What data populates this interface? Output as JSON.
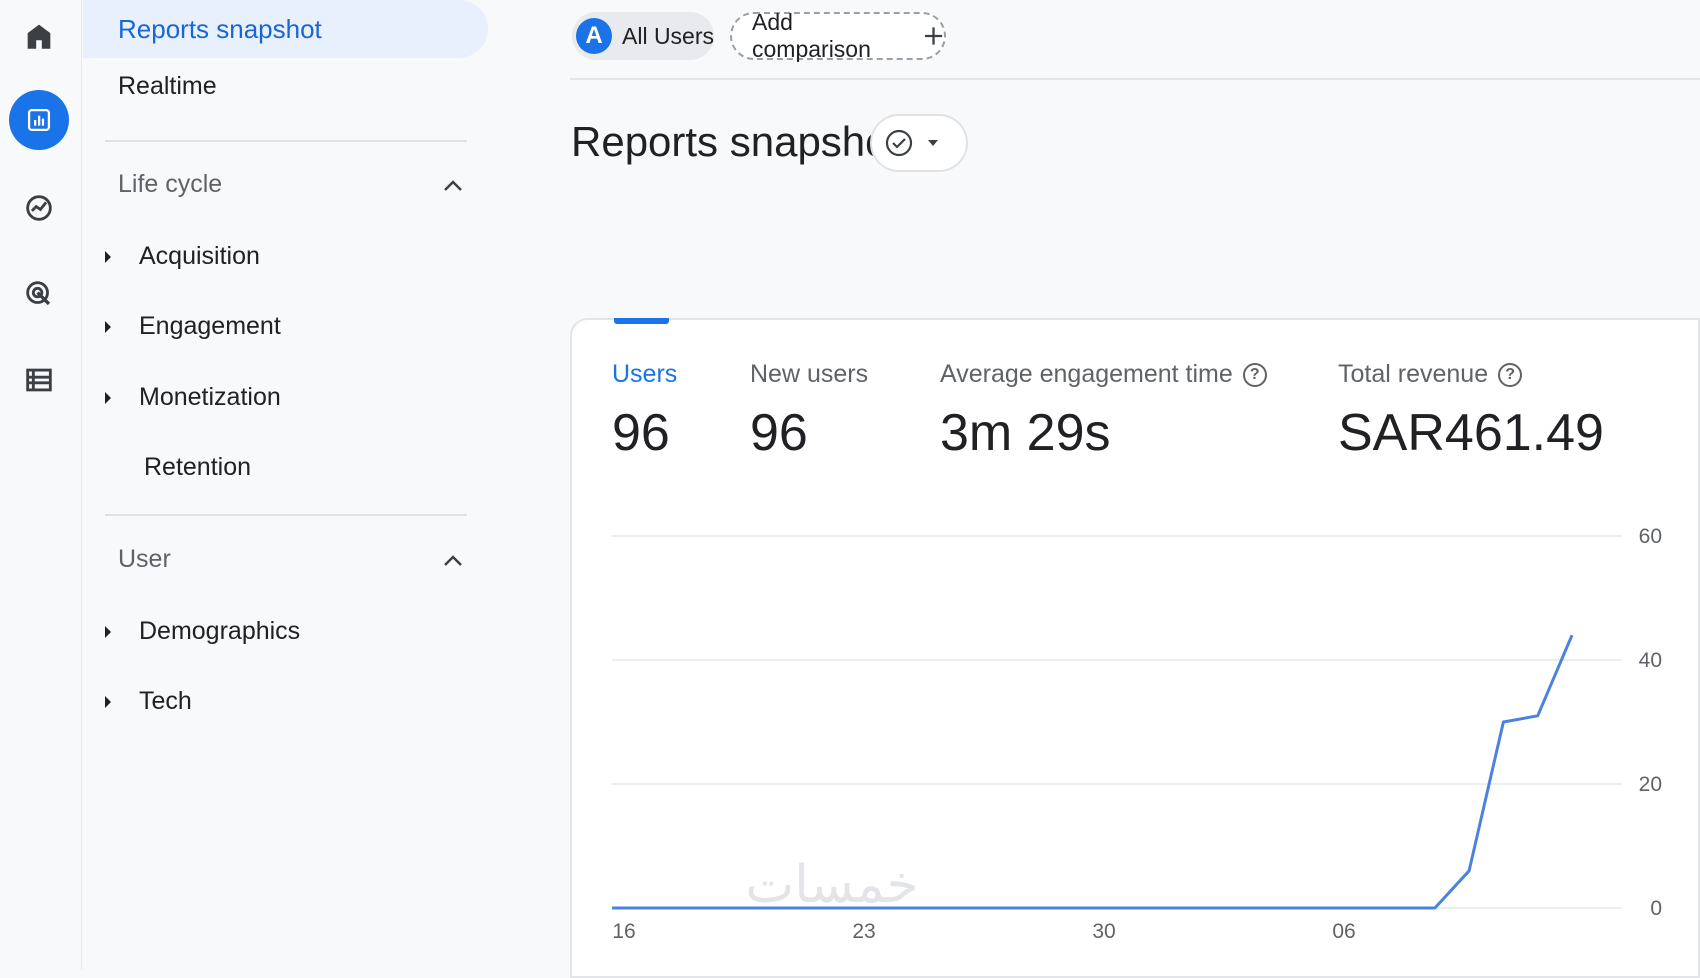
{
  "rail": {
    "icons": [
      "home-icon",
      "reports-icon",
      "explore-icon",
      "advertising-icon",
      "configure-icon"
    ]
  },
  "nav": {
    "active_item": "Reports snapshot",
    "realtime": "Realtime",
    "lifecycle": {
      "header": "Life cycle",
      "items": [
        "Acquisition",
        "Engagement",
        "Monetization",
        "Retention"
      ]
    },
    "user": {
      "header": "User",
      "items": [
        "Demographics",
        "Tech"
      ]
    }
  },
  "header": {
    "segment_avatar": "A",
    "segment_label": "All Users",
    "add_comparison": "Add comparison",
    "title": "Reports snapshot"
  },
  "metrics": {
    "users": {
      "label": "Users",
      "value": "96"
    },
    "new_users": {
      "label": "New users",
      "value": "96"
    },
    "engagement": {
      "label": "Average engagement time",
      "value": "3m 29s"
    },
    "revenue": {
      "label": "Total revenue",
      "value": "SAR461.49"
    }
  },
  "chart_data": {
    "type": "line",
    "series": [
      {
        "values": [
          0,
          0,
          0,
          0,
          0,
          0,
          0,
          0,
          0,
          0,
          0,
          0,
          0,
          0,
          0,
          0,
          0,
          0,
          0,
          0,
          0,
          0,
          0,
          0,
          0,
          6,
          30,
          31,
          44
        ]
      }
    ],
    "x_ticks": [
      "16",
      "23",
      "30",
      "06"
    ],
    "x_tick_index": [
      0,
      7,
      14,
      21
    ],
    "y_ticks": [
      "0",
      "20",
      "40",
      "60"
    ],
    "ylim": [
      0,
      60
    ],
    "color": "#4a83df"
  },
  "watermark": "خمسات"
}
